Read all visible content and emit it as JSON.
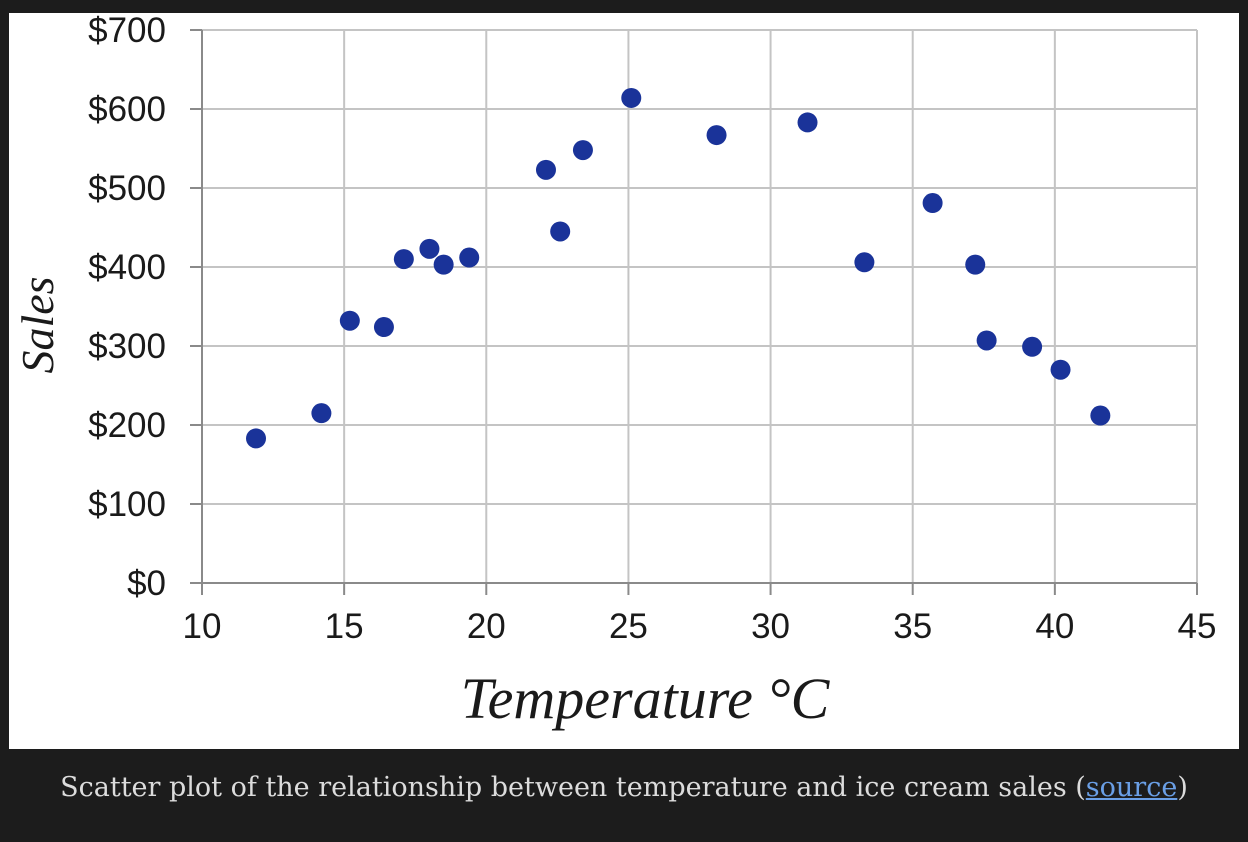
{
  "caption": {
    "text": "Scatter plot of the relationship between temperature and ice cream sales (",
    "link_label": "source",
    "suffix": ")"
  },
  "chart_data": {
    "type": "scatter",
    "xlabel": "Temperature °C",
    "ylabel": "Sales",
    "xlim": [
      10,
      45
    ],
    "ylim": [
      0,
      700
    ],
    "x_ticks": [
      "10",
      "15",
      "20",
      "25",
      "30",
      "35",
      "40",
      "45"
    ],
    "y_ticks": [
      "$0",
      "$100",
      "$200",
      "$300",
      "$400",
      "$500",
      "$600",
      "$700"
    ],
    "grid": true,
    "marker_color": "#1a3399",
    "points": [
      {
        "x": 11.9,
        "y": 183
      },
      {
        "x": 14.2,
        "y": 215
      },
      {
        "x": 15.2,
        "y": 332
      },
      {
        "x": 16.4,
        "y": 324
      },
      {
        "x": 17.1,
        "y": 410
      },
      {
        "x": 18.0,
        "y": 423
      },
      {
        "x": 18.5,
        "y": 403
      },
      {
        "x": 19.4,
        "y": 412
      },
      {
        "x": 22.1,
        "y": 523
      },
      {
        "x": 22.6,
        "y": 445
      },
      {
        "x": 23.4,
        "y": 548
      },
      {
        "x": 25.1,
        "y": 614
      },
      {
        "x": 28.1,
        "y": 567
      },
      {
        "x": 31.3,
        "y": 583
      },
      {
        "x": 33.3,
        "y": 406
      },
      {
        "x": 35.7,
        "y": 481
      },
      {
        "x": 37.2,
        "y": 403
      },
      {
        "x": 37.6,
        "y": 307
      },
      {
        "x": 39.2,
        "y": 299
      },
      {
        "x": 40.2,
        "y": 270
      },
      {
        "x": 41.6,
        "y": 212
      }
    ]
  }
}
